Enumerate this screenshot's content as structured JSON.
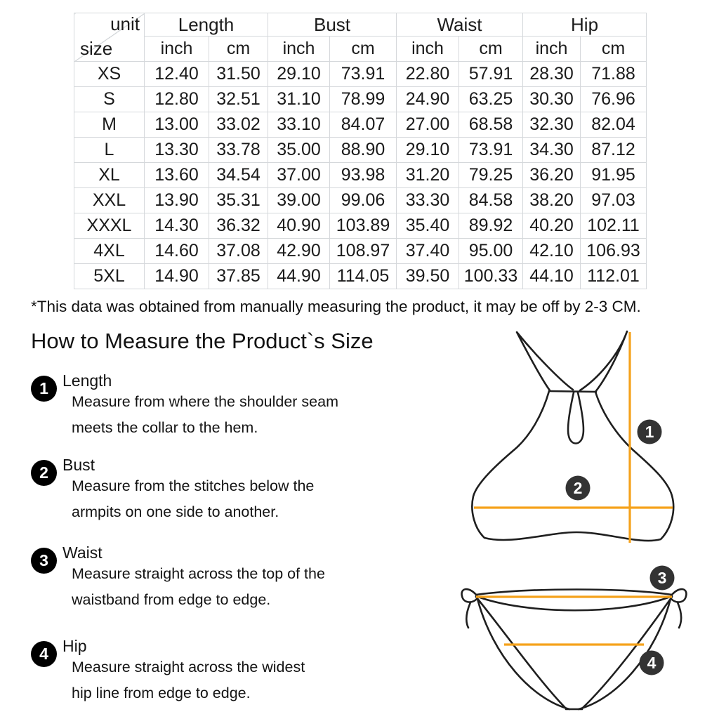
{
  "colors": {
    "accent": "#F5A21B",
    "diagram_marker": "#333333",
    "step_marker": "#000000",
    "table_border": "#d5d8db",
    "ink": "#1b1b1b"
  },
  "table": {
    "corner_top": "unit",
    "corner_bottom": "size",
    "groups": [
      "Length",
      "Bust",
      "Waist",
      "Hip"
    ],
    "unit_headers": [
      "inch",
      "cm",
      "inch",
      "cm",
      "inch",
      "cm",
      "inch",
      "cm"
    ],
    "rows": [
      {
        "size": "XS",
        "values": [
          "12.40",
          "31.50",
          "29.10",
          "73.91",
          "22.80",
          "57.91",
          "28.30",
          "71.88"
        ]
      },
      {
        "size": "S",
        "values": [
          "12.80",
          "32.51",
          "31.10",
          "78.99",
          "24.90",
          "63.25",
          "30.30",
          "76.96"
        ]
      },
      {
        "size": "M",
        "values": [
          "13.00",
          "33.02",
          "33.10",
          "84.07",
          "27.00",
          "68.58",
          "32.30",
          "82.04"
        ]
      },
      {
        "size": "L",
        "values": [
          "13.30",
          "33.78",
          "35.00",
          "88.90",
          "29.10",
          "73.91",
          "34.30",
          "87.12"
        ]
      },
      {
        "size": "XL",
        "values": [
          "13.60",
          "34.54",
          "37.00",
          "93.98",
          "31.20",
          "79.25",
          "36.20",
          "91.95"
        ]
      },
      {
        "size": "XXL",
        "values": [
          "13.90",
          "35.31",
          "39.00",
          "99.06",
          "33.30",
          "84.58",
          "38.20",
          "97.03"
        ]
      },
      {
        "size": "XXXL",
        "values": [
          "14.30",
          "36.32",
          "40.90",
          "103.89",
          "35.40",
          "89.92",
          "40.20",
          "102.11"
        ]
      },
      {
        "size": "4XL",
        "values": [
          "14.60",
          "37.08",
          "42.90",
          "108.97",
          "37.40",
          "95.00",
          "42.10",
          "106.93"
        ]
      },
      {
        "size": "5XL",
        "values": [
          "14.90",
          "37.85",
          "44.90",
          "114.05",
          "39.50",
          "100.33",
          "44.10",
          "112.01"
        ]
      }
    ]
  },
  "disclaimer": "*This data was obtained from manually measuring the product, it may be off by 2-3 CM.",
  "section": {
    "heading": "How to Measure the Product`s Size",
    "steps": [
      {
        "num": "1",
        "title": "Length",
        "desc": "Measure from where the shoulder seam\nmeets the collar to the hem."
      },
      {
        "num": "2",
        "title": "Bust",
        "desc": "Measure from the stitches below the\narmpits on one side to another."
      },
      {
        "num": "3",
        "title": "Waist",
        "desc": "Measure straight across the top of the\nwaistband from edge to edge."
      },
      {
        "num": "4",
        "title": "Hip",
        "desc": "Measure straight across the widest\nhip line from edge to edge."
      }
    ]
  },
  "diagram": {
    "markers": [
      "1",
      "2",
      "3",
      "4"
    ]
  }
}
